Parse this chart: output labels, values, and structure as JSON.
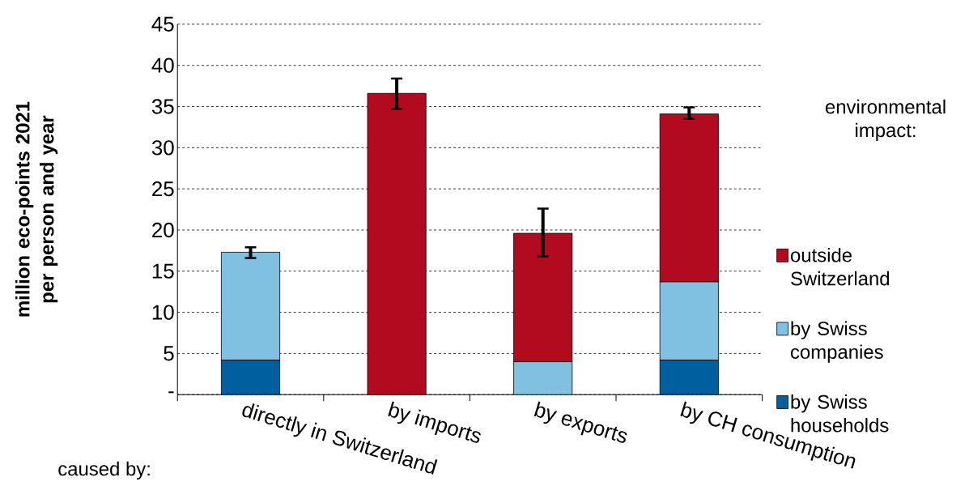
{
  "chart_data": {
    "type": "bar",
    "stacked": true,
    "ylabel": "million eco-points 2021 per person and year",
    "legend_title": "environmental impact:",
    "annotations": [
      "caused by:"
    ],
    "categories": [
      "directly in Switzerland",
      "by imports",
      "by exports",
      "by CH consumption"
    ],
    "series": [
      {
        "name": "by Swiss households",
        "color": "#00609f",
        "values": [
          4.2,
          null,
          null,
          4.2
        ]
      },
      {
        "name": "by Swiss companies",
        "color": "#80c0e0",
        "values": [
          13.1,
          null,
          4.0,
          9.5
        ],
        "errors": [
          [
            16.6,
            17.9
          ],
          null,
          null,
          null
        ]
      },
      {
        "name": "outside Switzerland",
        "color": "#b20a1e",
        "values": [
          null,
          36.6,
          15.6,
          20.4
        ],
        "errors": [
          null,
          [
            34.7,
            38.4
          ],
          [
            16.8,
            22.6
          ],
          [
            33.5,
            34.9
          ]
        ]
      }
    ],
    "ylim": [
      0,
      45
    ],
    "yticks": [
      {
        "value": 0,
        "label": "-"
      },
      5,
      10,
      15,
      20,
      25,
      30,
      35,
      40,
      45
    ],
    "grid": "y",
    "legend": "right"
  }
}
